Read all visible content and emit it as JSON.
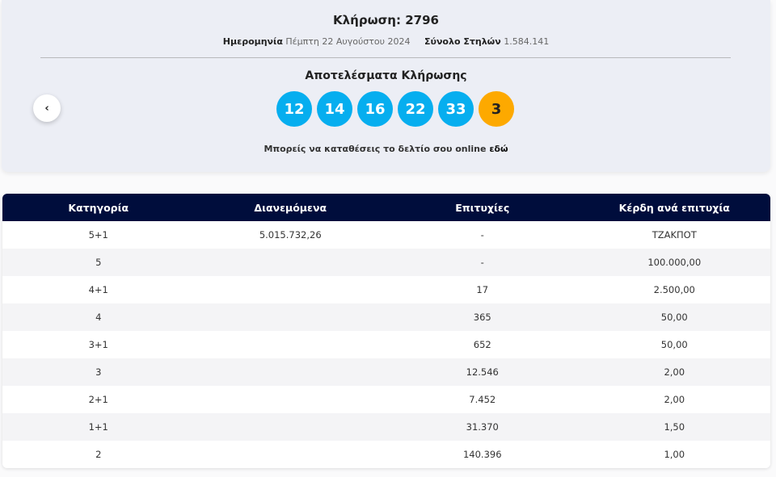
{
  "draw": {
    "title": "Κλήρωση: 2796",
    "date_label": "Ημερομηνία",
    "date_value": "Πέμπτη 22 Αυγούστου 2024",
    "total_label": "Σύνολο Στηλών",
    "total_value": "1.584.141",
    "results_label": "Αποτελέσματα Κλήρωσης",
    "numbers": [
      "12",
      "14",
      "16",
      "22",
      "33"
    ],
    "bonus": "3",
    "online_text": "Μπορείς να καταθέσεις το δελτίο σου online",
    "online_link": "εδώ",
    "prev_icon": "chevron-left-icon"
  },
  "colors": {
    "ball": "#06aeef",
    "bonus": "#fda900",
    "header": "#000d3c"
  },
  "table": {
    "headers": [
      "Κατηγορία",
      "Διανεμόμενα",
      "Επιτυχίες",
      "Κέρδη ανά επιτυχία"
    ],
    "rows": [
      [
        "5+1",
        "5.015.732,26",
        "-",
        "ΤΖΑΚΠΟΤ"
      ],
      [
        "5",
        "",
        "-",
        "100.000,00"
      ],
      [
        "4+1",
        "",
        "17",
        "2.500,00"
      ],
      [
        "4",
        "",
        "365",
        "50,00"
      ],
      [
        "3+1",
        "",
        "652",
        "50,00"
      ],
      [
        "3",
        "",
        "12.546",
        "2,00"
      ],
      [
        "2+1",
        "",
        "7.452",
        "2,00"
      ],
      [
        "1+1",
        "",
        "31.370",
        "1,50"
      ],
      [
        "2",
        "",
        "140.396",
        "1,00"
      ]
    ]
  }
}
